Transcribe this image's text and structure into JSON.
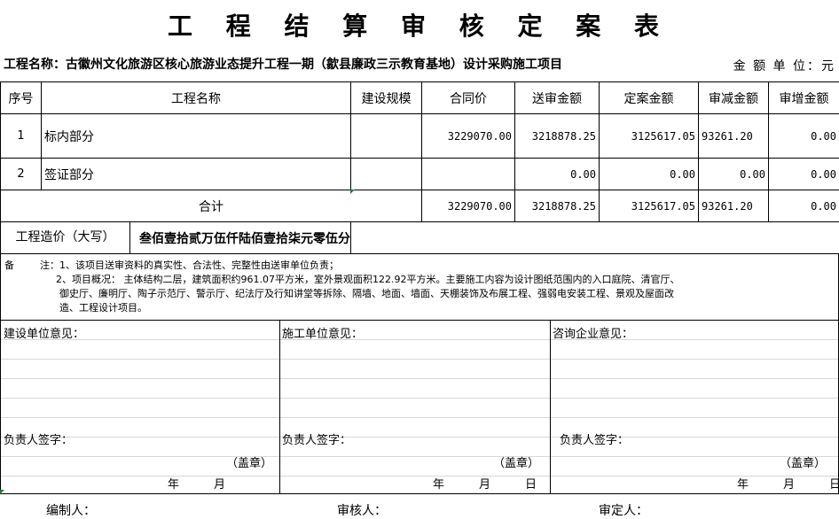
{
  "title": "工 程 结 算 审 核 定 案 表",
  "project_label": "工程名称：古徽州文化旅游区核心旅游业态提升工程一期（歙县廉政三示教育基地）设计采购施工项目",
  "unit": "金 额 单 位：元",
  "headers": [
    "序号",
    "工程名称",
    "建设规模",
    "合同价",
    "送审金额",
    "定案金额",
    "审减金额",
    "审增金额"
  ],
  "rows": [
    {
      "no": "1",
      "name": "标内部分",
      "scale": "",
      "contract": "3229070.00",
      "submitted": "3218878.25",
      "approved": "3125617.05",
      "reduced": "93261.20",
      "increased": "0.00"
    },
    {
      "no": "2",
      "name": "签证部分",
      "scale": "",
      "contract": "",
      "submitted": "0.00",
      "approved": "0.00",
      "reduced": "0.00",
      "increased": "0.00"
    }
  ],
  "total": {
    "label": "合计",
    "contract": "3229070.00",
    "submitted": "3218878.25",
    "approved": "3125617.05",
    "reduced": "93261.20",
    "increased": "0.00"
  },
  "capital": {
    "label": "工程造价（大写）",
    "value": "叁佰壹拾贰万伍仟陆佰壹拾柒元零伍分"
  },
  "notes": {
    "label": "备",
    "line1": "注：1、该项目送审资料的真实性、合法性、完整性由送审单位负责；",
    "line2": "2、项目概况： 主体结构二层，建筑面积约961.07平方米，室外景观面积122.92平方米。主要施工内容为设计图纸范围内的入口庭院、清官厅、",
    "line3": "御史厅、廉明厅、陶子示范厅、警示厅、纪法厅及行知讲堂等拆除、隔墙、地面、墙面、天棚装饰及布展工程、强弱电安装工程、景观及屋面改",
    "line4": "造、工程设计项目。"
  },
  "opinions": [
    {
      "title": "建设单位意见：",
      "sign": "负责人签字：",
      "seal": "（盖章）",
      "date": "年　　　月"
    },
    {
      "title": "施工单位意见：",
      "sign": "负责人签字：",
      "seal": "（盖章）",
      "date": "年　　　月　　　日"
    },
    {
      "title": "咨询企业意见：",
      "sign": "负责人签字：",
      "seal": "（盖章）",
      "date": "年　　　月　　　日"
    }
  ],
  "footer": {
    "preparer": "编制人：",
    "reviewer": "审核人：",
    "approver": "审定人："
  }
}
